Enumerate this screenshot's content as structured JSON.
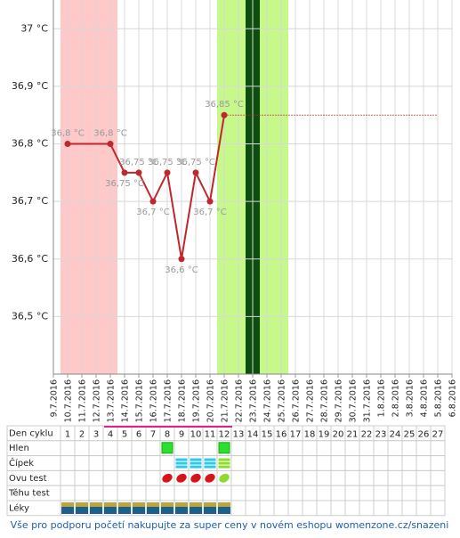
{
  "chart_data": {
    "type": "line",
    "x": [
      "10.7.2016",
      "13.7.2016",
      "14.7.2016",
      "15.7.2016",
      "16.7.2016",
      "17.7.2016",
      "18.7.2016",
      "19.7.2016",
      "20.7.2016",
      "21.7.2016"
    ],
    "values": [
      36.8,
      36.8,
      36.75,
      36.75,
      36.7,
      36.75,
      36.6,
      36.75,
      36.7,
      36.85
    ],
    "value_labels": [
      "36,8 °C",
      "36,8 °C",
      "36,75 °C",
      "36,75 °C",
      "36,7 °C",
      "36,75 °C",
      "36,6 °C",
      "36,75 °C",
      "36,7 °C",
      "36,85 °C"
    ],
    "color": "#c0272d",
    "xlim": [
      "9.7.2016",
      "6.8.2016"
    ],
    "xticks": [
      "9.7.2016",
      "10.7.2016",
      "11.7.2016",
      "12.7.2016",
      "13.7.2016",
      "14.7.2016",
      "15.7.2016",
      "16.7.2016",
      "17.7.2016",
      "18.7.2016",
      "19.7.2016",
      "20.7.2016",
      "21.7.2016",
      "22.7.2016",
      "23.7.2016",
      "24.7.2016",
      "25.7.2016",
      "26.7.2016",
      "27.7.2016",
      "28.7.2016",
      "29.7.2016",
      "30.7.2016",
      "31.7.2016",
      "1.8.2016",
      "2.8.2016",
      "3.8.2016",
      "4.8.2016",
      "5.8.2016",
      "6.8.2016"
    ],
    "ylim": [
      36.4,
      37.05
    ],
    "yticks": [
      {
        "value": 37,
        "label": "37 °C"
      },
      {
        "value": 36.9,
        "label": "36,9 °C"
      },
      {
        "value": 36.8,
        "label": "36,8 °C"
      },
      {
        "value": 36.7,
        "label": "36,7 °C"
      },
      {
        "value": 36.6,
        "label": "36,6 °C"
      },
      {
        "value": 36.5,
        "label": "36,5 °C"
      }
    ],
    "grid": true,
    "bands": [
      {
        "from": "10.7.2016",
        "to": "13.7.2016",
        "color": "#ffc9c9"
      },
      {
        "from": "21.7.2016",
        "to": "25.7.2016",
        "color": "#c6f98a"
      },
      {
        "from": "23.7.2016",
        "to": "23.7.2016",
        "color": "#0d4d0d"
      }
    ],
    "projection_color": "#c0272d"
  },
  "cycle_table": {
    "row_labels": [
      "Den cyklu",
      "Hlen",
      "Čípek",
      "Ovu test",
      "Těhu test",
      "Léky"
    ],
    "days": [
      1,
      2,
      3,
      4,
      5,
      6,
      7,
      8,
      9,
      10,
      11,
      12,
      13,
      14,
      15,
      16,
      17,
      18,
      19,
      20,
      21,
      22,
      23,
      24,
      25,
      26,
      27
    ],
    "hlen": [
      8,
      12
    ],
    "cipek": [
      9,
      10,
      11,
      12
    ],
    "ovu_test": [
      8,
      9,
      10,
      11,
      12
    ],
    "leky": [
      1,
      2,
      3,
      4,
      5,
      6,
      7,
      8,
      9,
      10,
      11,
      12
    ]
  },
  "footer": {
    "text": "Vše pro podporu početí nakupujte za super ceny v novém eshopu womenzone.cz/snazeni"
  }
}
